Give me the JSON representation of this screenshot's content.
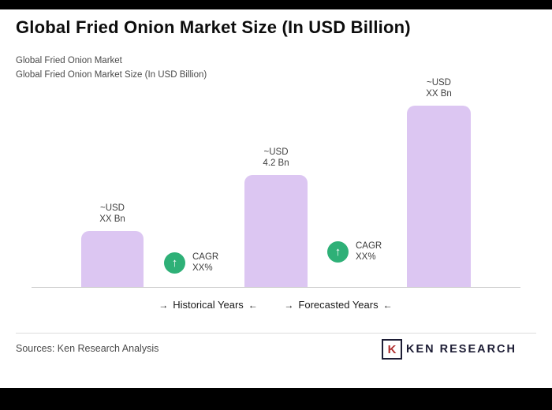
{
  "header": {
    "title": "Global Fried Onion Market Size (In USD Billion)",
    "subtitle_line1": "Global Fried Onion Market",
    "subtitle_line2": "Global Fried Onion Market Size (In USD Billion)"
  },
  "chart_data": {
    "type": "bar",
    "title": "Global Fried Onion Market Size (In USD Billion)",
    "unit": "USD Billion",
    "bars": [
      {
        "label_line1": "~USD",
        "label_line2": "XX Bn",
        "value_est_usd_bn": 2.1
      },
      {
        "label_line1": "~USD",
        "label_line2": "4.2 Bn",
        "value_est_usd_bn": 4.2
      },
      {
        "label_line1": "~USD",
        "label_line2": "XX Bn",
        "value_est_usd_bn": 6.8
      }
    ],
    "bar_color": "#dcc6f2",
    "cagr_badges": [
      {
        "label": "CAGR",
        "value": "XX%"
      },
      {
        "label": "CAGR",
        "value": "XX%"
      }
    ],
    "axis_sections": [
      {
        "label": "Historical Years"
      },
      {
        "label": "Forecasted Years"
      }
    ],
    "ylim": [
      0,
      7.5
    ],
    "grid": false,
    "legend": false
  },
  "icons": {
    "arrow_right": "→",
    "arrow_left": "←",
    "up_arrow": "↑",
    "badge_color": "#2eb077"
  },
  "footer": {
    "sources": "Sources: Ken Research Analysis",
    "logo_k": "K",
    "logo_text": "KEN RESEARCH"
  }
}
